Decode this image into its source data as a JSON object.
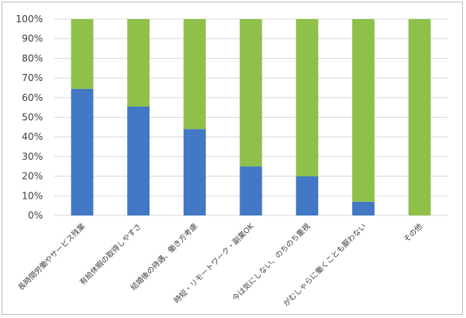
{
  "chart_data": {
    "type": "bar",
    "stacked": true,
    "percent": true,
    "title": "",
    "xlabel": "",
    "ylabel": "",
    "ylim": [
      0,
      100
    ],
    "y_ticks": [
      "0%",
      "10%",
      "20%",
      "30%",
      "40%",
      "50%",
      "60%",
      "70%",
      "80%",
      "90%",
      "100%"
    ],
    "grid": true,
    "legend": "none",
    "categories": [
      "長時間労働やサービス残業",
      "有給休暇の取得しやすさ",
      "結婚後の待遇、働き方考慮",
      "時短・リモートワーク・副業OK",
      "今は気にしない、のちのち重視",
      "がむしゃらに働くことも厭わない",
      "その他"
    ],
    "series": [
      {
        "color": "#4278c4",
        "values": [
          64.5,
          55.5,
          44,
          25,
          20,
          7,
          0
        ]
      },
      {
        "color": "#8fc04a",
        "values": [
          35.5,
          44.5,
          56,
          75,
          80,
          93,
          100
        ]
      }
    ]
  }
}
